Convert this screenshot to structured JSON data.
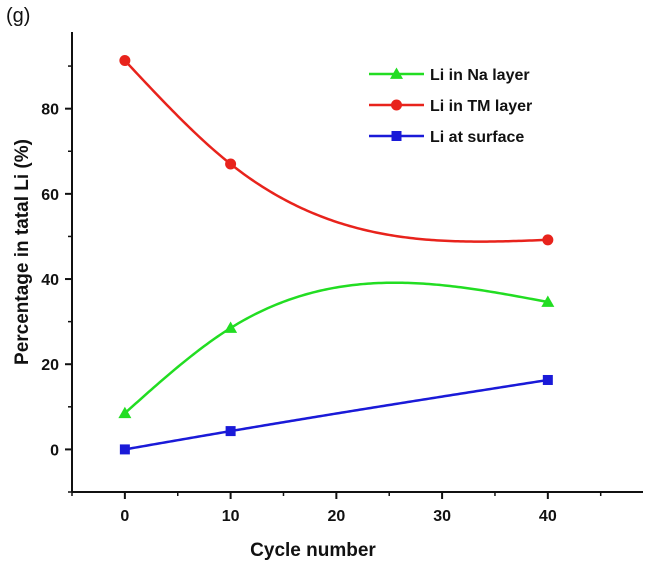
{
  "chart_data": {
    "type": "line",
    "panel_label": "(g)",
    "xlabel": "Cycle number",
    "ylabel": "Percentage in tatal Li (%)",
    "xlim": [
      -5,
      49
    ],
    "ylim": [
      -10,
      98
    ],
    "x_ticks": [
      0,
      10,
      20,
      30,
      40
    ],
    "y_ticks": [
      0,
      20,
      40,
      60,
      80
    ],
    "legend_position": "top-right",
    "smooth": true,
    "series": [
      {
        "name": "Li in Na layer",
        "color": "#22dd22",
        "marker": "triangle",
        "x": [
          0,
          10,
          40
        ],
        "y": [
          8.5,
          28.5,
          34.6
        ]
      },
      {
        "name": "Li in TM layer",
        "color": "#e8231c",
        "marker": "circle",
        "x": [
          0,
          10,
          40
        ],
        "y": [
          91.3,
          67.0,
          49.2
        ]
      },
      {
        "name": "Li at surface",
        "color": "#1a1ad8",
        "marker": "square",
        "x": [
          0,
          10,
          40
        ],
        "y": [
          0.0,
          4.3,
          16.3
        ]
      }
    ]
  }
}
